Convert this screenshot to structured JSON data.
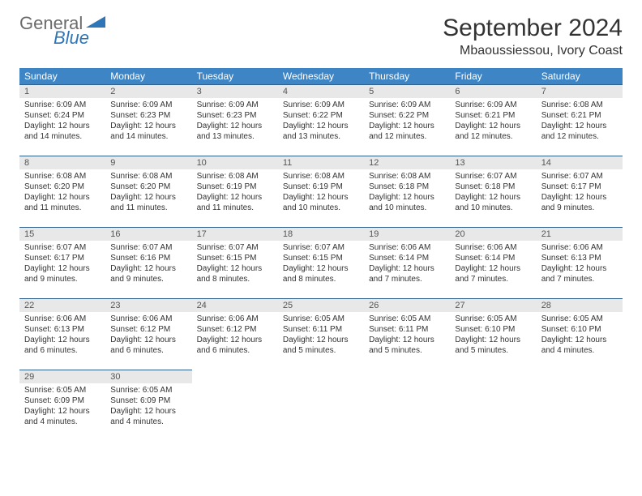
{
  "brand": {
    "general": "General",
    "blue": "Blue"
  },
  "title": "September 2024",
  "location": "Mbaoussiessou, Ivory Coast",
  "colors": {
    "header_bg": "#3e85c6",
    "header_text": "#ffffff",
    "daynum_bg": "#e8e8e8",
    "border": "#2f5f8a",
    "brand_gray": "#6b6b6b",
    "brand_blue": "#2f76b8"
  },
  "day_labels": [
    "Sunday",
    "Monday",
    "Tuesday",
    "Wednesday",
    "Thursday",
    "Friday",
    "Saturday"
  ],
  "weeks": [
    [
      {
        "n": "1",
        "sr": "Sunrise: 6:09 AM",
        "ss": "Sunset: 6:24 PM",
        "dl1": "Daylight: 12 hours",
        "dl2": "and 14 minutes."
      },
      {
        "n": "2",
        "sr": "Sunrise: 6:09 AM",
        "ss": "Sunset: 6:23 PM",
        "dl1": "Daylight: 12 hours",
        "dl2": "and 14 minutes."
      },
      {
        "n": "3",
        "sr": "Sunrise: 6:09 AM",
        "ss": "Sunset: 6:23 PM",
        "dl1": "Daylight: 12 hours",
        "dl2": "and 13 minutes."
      },
      {
        "n": "4",
        "sr": "Sunrise: 6:09 AM",
        "ss": "Sunset: 6:22 PM",
        "dl1": "Daylight: 12 hours",
        "dl2": "and 13 minutes."
      },
      {
        "n": "5",
        "sr": "Sunrise: 6:09 AM",
        "ss": "Sunset: 6:22 PM",
        "dl1": "Daylight: 12 hours",
        "dl2": "and 12 minutes."
      },
      {
        "n": "6",
        "sr": "Sunrise: 6:09 AM",
        "ss": "Sunset: 6:21 PM",
        "dl1": "Daylight: 12 hours",
        "dl2": "and 12 minutes."
      },
      {
        "n": "7",
        "sr": "Sunrise: 6:08 AM",
        "ss": "Sunset: 6:21 PM",
        "dl1": "Daylight: 12 hours",
        "dl2": "and 12 minutes."
      }
    ],
    [
      {
        "n": "8",
        "sr": "Sunrise: 6:08 AM",
        "ss": "Sunset: 6:20 PM",
        "dl1": "Daylight: 12 hours",
        "dl2": "and 11 minutes."
      },
      {
        "n": "9",
        "sr": "Sunrise: 6:08 AM",
        "ss": "Sunset: 6:20 PM",
        "dl1": "Daylight: 12 hours",
        "dl2": "and 11 minutes."
      },
      {
        "n": "10",
        "sr": "Sunrise: 6:08 AM",
        "ss": "Sunset: 6:19 PM",
        "dl1": "Daylight: 12 hours",
        "dl2": "and 11 minutes."
      },
      {
        "n": "11",
        "sr": "Sunrise: 6:08 AM",
        "ss": "Sunset: 6:19 PM",
        "dl1": "Daylight: 12 hours",
        "dl2": "and 10 minutes."
      },
      {
        "n": "12",
        "sr": "Sunrise: 6:08 AM",
        "ss": "Sunset: 6:18 PM",
        "dl1": "Daylight: 12 hours",
        "dl2": "and 10 minutes."
      },
      {
        "n": "13",
        "sr": "Sunrise: 6:07 AM",
        "ss": "Sunset: 6:18 PM",
        "dl1": "Daylight: 12 hours",
        "dl2": "and 10 minutes."
      },
      {
        "n": "14",
        "sr": "Sunrise: 6:07 AM",
        "ss": "Sunset: 6:17 PM",
        "dl1": "Daylight: 12 hours",
        "dl2": "and 9 minutes."
      }
    ],
    [
      {
        "n": "15",
        "sr": "Sunrise: 6:07 AM",
        "ss": "Sunset: 6:17 PM",
        "dl1": "Daylight: 12 hours",
        "dl2": "and 9 minutes."
      },
      {
        "n": "16",
        "sr": "Sunrise: 6:07 AM",
        "ss": "Sunset: 6:16 PM",
        "dl1": "Daylight: 12 hours",
        "dl2": "and 9 minutes."
      },
      {
        "n": "17",
        "sr": "Sunrise: 6:07 AM",
        "ss": "Sunset: 6:15 PM",
        "dl1": "Daylight: 12 hours",
        "dl2": "and 8 minutes."
      },
      {
        "n": "18",
        "sr": "Sunrise: 6:07 AM",
        "ss": "Sunset: 6:15 PM",
        "dl1": "Daylight: 12 hours",
        "dl2": "and 8 minutes."
      },
      {
        "n": "19",
        "sr": "Sunrise: 6:06 AM",
        "ss": "Sunset: 6:14 PM",
        "dl1": "Daylight: 12 hours",
        "dl2": "and 7 minutes."
      },
      {
        "n": "20",
        "sr": "Sunrise: 6:06 AM",
        "ss": "Sunset: 6:14 PM",
        "dl1": "Daylight: 12 hours",
        "dl2": "and 7 minutes."
      },
      {
        "n": "21",
        "sr": "Sunrise: 6:06 AM",
        "ss": "Sunset: 6:13 PM",
        "dl1": "Daylight: 12 hours",
        "dl2": "and 7 minutes."
      }
    ],
    [
      {
        "n": "22",
        "sr": "Sunrise: 6:06 AM",
        "ss": "Sunset: 6:13 PM",
        "dl1": "Daylight: 12 hours",
        "dl2": "and 6 minutes."
      },
      {
        "n": "23",
        "sr": "Sunrise: 6:06 AM",
        "ss": "Sunset: 6:12 PM",
        "dl1": "Daylight: 12 hours",
        "dl2": "and 6 minutes."
      },
      {
        "n": "24",
        "sr": "Sunrise: 6:06 AM",
        "ss": "Sunset: 6:12 PM",
        "dl1": "Daylight: 12 hours",
        "dl2": "and 6 minutes."
      },
      {
        "n": "25",
        "sr": "Sunrise: 6:05 AM",
        "ss": "Sunset: 6:11 PM",
        "dl1": "Daylight: 12 hours",
        "dl2": "and 5 minutes."
      },
      {
        "n": "26",
        "sr": "Sunrise: 6:05 AM",
        "ss": "Sunset: 6:11 PM",
        "dl1": "Daylight: 12 hours",
        "dl2": "and 5 minutes."
      },
      {
        "n": "27",
        "sr": "Sunrise: 6:05 AM",
        "ss": "Sunset: 6:10 PM",
        "dl1": "Daylight: 12 hours",
        "dl2": "and 5 minutes."
      },
      {
        "n": "28",
        "sr": "Sunrise: 6:05 AM",
        "ss": "Sunset: 6:10 PM",
        "dl1": "Daylight: 12 hours",
        "dl2": "and 4 minutes."
      }
    ],
    [
      {
        "n": "29",
        "sr": "Sunrise: 6:05 AM",
        "ss": "Sunset: 6:09 PM",
        "dl1": "Daylight: 12 hours",
        "dl2": "and 4 minutes."
      },
      {
        "n": "30",
        "sr": "Sunrise: 6:05 AM",
        "ss": "Sunset: 6:09 PM",
        "dl1": "Daylight: 12 hours",
        "dl2": "and 4 minutes."
      },
      {
        "empty": true
      },
      {
        "empty": true
      },
      {
        "empty": true
      },
      {
        "empty": true
      },
      {
        "empty": true
      }
    ]
  ]
}
